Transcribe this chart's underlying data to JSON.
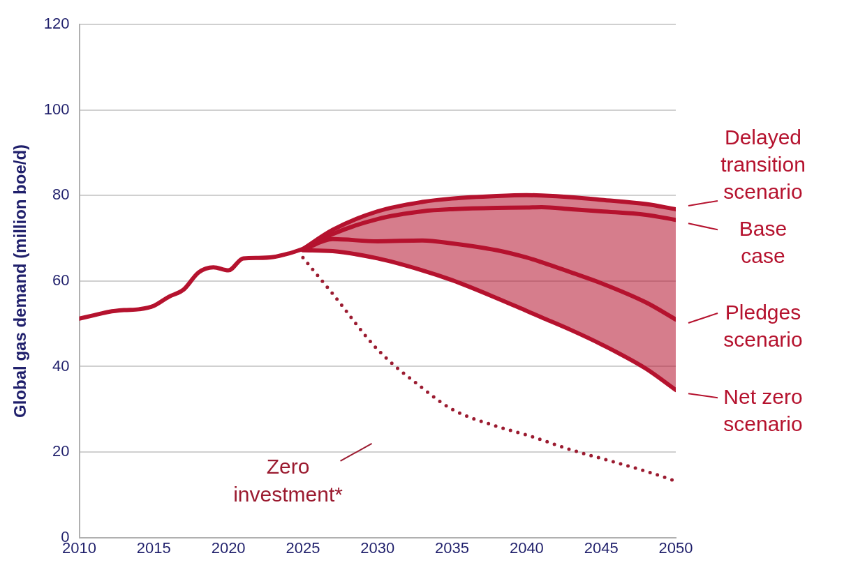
{
  "chart_data": {
    "type": "line",
    "ylabel": "Global gas demand (million boe/d)",
    "xlim": [
      2010,
      2050
    ],
    "xticks": [
      2010,
      2015,
      2020,
      2025,
      2030,
      2035,
      2040,
      2045,
      2050
    ],
    "ylim": [
      0,
      120
    ],
    "yticks": [
      0,
      20,
      40,
      60,
      80,
      100,
      120
    ],
    "grid": "y",
    "line_style": "solid",
    "legend": "right",
    "series": [
      {
        "color": "#b5122e",
        "x": [
          2010,
          2011,
          2012,
          2013,
          2014,
          2015,
          2016,
          2017,
          2018,
          2019,
          2020,
          2021,
          2022,
          2023,
          2024,
          2025
        ],
        "values": [
          51.2,
          52,
          52.8,
          53.2,
          53.4,
          54.2,
          56.3,
          58,
          62,
          63.2,
          62.5,
          65.3,
          65.4,
          65.6,
          66.4,
          67.5
        ]
      },
      {
        "name": "Delayed transition scenario",
        "color": "#b5122e",
        "x": [
          2025,
          2027,
          2030,
          2033,
          2035,
          2038,
          2040,
          2041,
          2043,
          2045,
          2048,
          2050
        ],
        "values": [
          67.5,
          72,
          76.3,
          78.5,
          79.3,
          79.9,
          80.1,
          80,
          79.6,
          79,
          78,
          76.8
        ]
      },
      {
        "name": "Base case",
        "color": "#b5122e",
        "x": [
          2025,
          2027,
          2030,
          2033,
          2035,
          2038,
          2040,
          2041,
          2043,
          2045,
          2048,
          2050
        ],
        "values": [
          67.5,
          71,
          74.5,
          76.3,
          76.8,
          77.1,
          77.2,
          77.3,
          76.8,
          76.3,
          75.5,
          74.3
        ],
        "lower": [
          67.2,
          67,
          65.3,
          62.5,
          60.2,
          56,
          53,
          51.5,
          48.5,
          45.2,
          39.5,
          34.5
        ],
        "upper": [
          67.5,
          72,
          76.3,
          78.5,
          79.3,
          79.9,
          80.1,
          80,
          79.6,
          79,
          78,
          76.8
        ]
      },
      {
        "name": "Pledges scenario",
        "color": "#b5122e",
        "x": [
          2025,
          2027,
          2030,
          2033,
          2035,
          2038,
          2040,
          2041,
          2043,
          2045,
          2048,
          2050
        ],
        "values": [
          67.3,
          69.8,
          69.3,
          69.5,
          68.8,
          67.2,
          65.5,
          64.4,
          62,
          59.5,
          55,
          51
        ]
      },
      {
        "name": "Net zero scenario",
        "color": "#b5122e",
        "x": [
          2025,
          2027,
          2030,
          2033,
          2035,
          2038,
          2040,
          2041,
          2043,
          2045,
          2048,
          2050
        ],
        "values": [
          67.2,
          67,
          65.3,
          62.5,
          60.2,
          56,
          53,
          51.5,
          48.5,
          45.2,
          39.5,
          34.5
        ]
      },
      {
        "name": "Zero investment*",
        "color": "#9b1b30",
        "line_style": "dotted",
        "x": [
          2025,
          2027,
          2030,
          2033,
          2035,
          2038,
          2040,
          2043,
          2045,
          2048,
          2050
        ],
        "values": [
          65.5,
          57,
          44,
          35,
          30,
          26,
          24,
          20.5,
          18.5,
          15.5,
          13.2
        ]
      }
    ]
  }
}
